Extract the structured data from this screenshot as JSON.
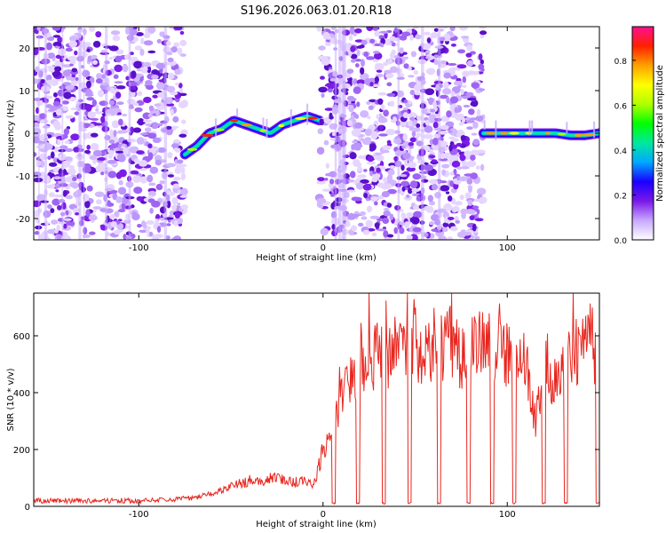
{
  "title": "S196.2026.063.01.20.R18",
  "chart_data": [
    {
      "type": "heatmap",
      "xlabel": "Height of straight line (km)",
      "ylabel": "Frequency (Hz)",
      "xlim": [
        -157,
        150
      ],
      "ylim": [
        -25,
        25
      ],
      "xticks": [
        -100,
        0,
        100
      ],
      "yticks": [
        -20,
        -10,
        0,
        10,
        20
      ],
      "grid": false,
      "colorbar": {
        "label": "Normalized spectral amplitude",
        "range": [
          0,
          0.95
        ],
        "ticks": [
          0.0,
          0.2,
          0.4,
          0.6,
          0.8
        ],
        "colors": [
          "#ffffff",
          "#c8a8ff",
          "#7a18e8",
          "#1a00ff",
          "#00a8ff",
          "#00e8a0",
          "#00ff00",
          "#b0ff00",
          "#ffff00",
          "#ffa000",
          "#ff2000",
          "#ff1090"
        ]
      },
      "regions": [
        {
          "type": "noise",
          "x": [
            -157,
            -75
          ]
        },
        {
          "type": "signal",
          "x": [
            -75,
            -2
          ],
          "freq_hz": [
            -5,
            -3,
            0,
            1,
            3,
            2,
            1,
            0,
            2,
            3,
            4,
            3
          ]
        },
        {
          "type": "noise",
          "x": [
            -2,
            87
          ]
        },
        {
          "type": "signal",
          "x": [
            87,
            150
          ],
          "freq_hz": [
            0,
            0,
            0,
            0,
            0,
            0,
            -0.5,
            -0.5,
            0
          ]
        }
      ]
    },
    {
      "type": "line",
      "xlabel": "Height of straight line (km)",
      "ylabel": "SNR (10 * v/v)",
      "xlim": [
        -157,
        150
      ],
      "ylim": [
        0,
        750
      ],
      "xticks": [
        -100,
        0,
        100
      ],
      "yticks": [
        0,
        200,
        400,
        600
      ],
      "grid": false,
      "series": [
        {
          "color": "#e8261e",
          "x": [
            -157,
            -140,
            -120,
            -100,
            -80,
            -70,
            -60,
            -55,
            -50,
            -45,
            -40,
            -35,
            -30,
            -25,
            -20,
            -15,
            -10,
            -5,
            0,
            5,
            10,
            15,
            20,
            25,
            30,
            35,
            40,
            45,
            50,
            55,
            60,
            65,
            70,
            75,
            80,
            85,
            90,
            95,
            100,
            105,
            110,
            115,
            120,
            125,
            130,
            135,
            140,
            145,
            150
          ],
          "values": [
            20,
            20,
            20,
            20,
            25,
            30,
            45,
            60,
            70,
            80,
            90,
            85,
            95,
            100,
            90,
            85,
            100,
            80,
            200,
            300,
            380,
            440,
            470,
            500,
            540,
            520,
            560,
            560,
            560,
            520,
            580,
            560,
            570,
            520,
            540,
            560,
            580,
            550,
            540,
            560,
            520,
            300,
            500,
            420,
            500,
            540,
            540,
            570,
            520
          ],
          "dropouts_km": [
            6,
            19,
            33,
            47,
            63,
            79,
            92,
            104,
            120,
            132,
            149
          ]
        }
      ]
    }
  ]
}
